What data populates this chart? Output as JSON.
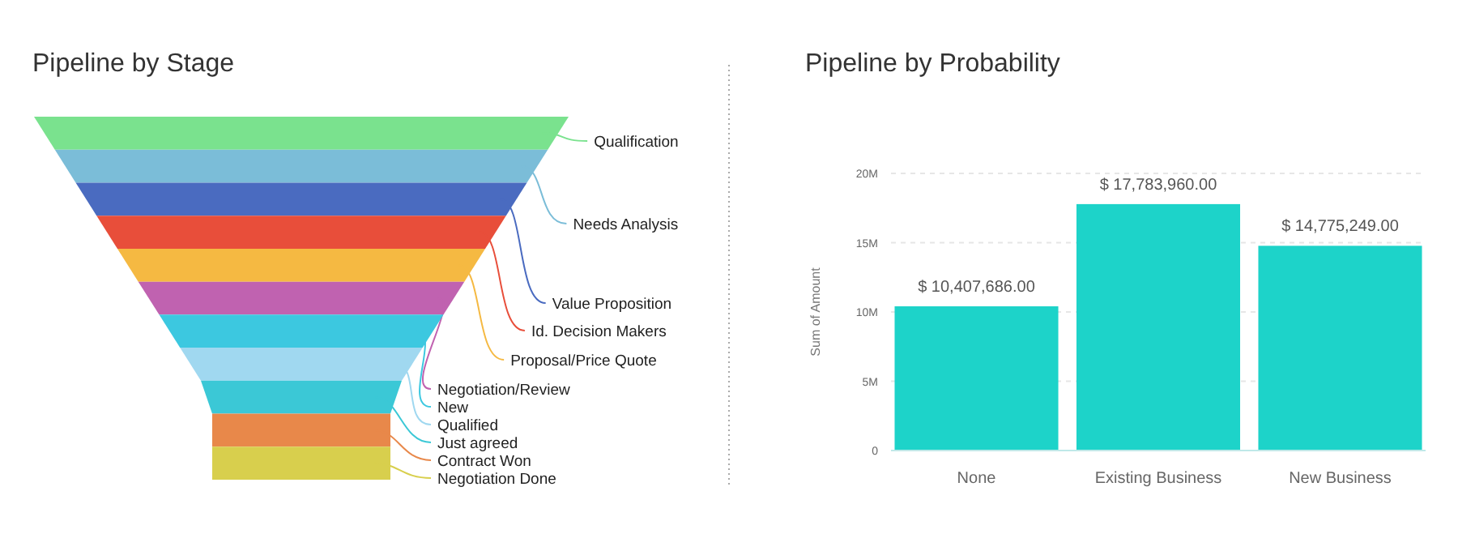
{
  "chart_data": [
    {
      "type": "other",
      "title": "Pipeline by Stage",
      "categories": [
        "Qualification",
        "Needs Analysis",
        "Value Proposition",
        "Id. Decision Makers",
        "Proposal/Price Quote",
        "Negotiation/Review",
        "New",
        "Qualified",
        "Just agreed",
        "Contract Won",
        "Negotiation Done"
      ],
      "colors": [
        "#7ae28e",
        "#7bbdd8",
        "#4a6bc0",
        "#e84e3a",
        "#f5b942",
        "#c062b0",
        "#3cc8e0",
        "#a0d8f0",
        "#3bc8d6",
        "#e8884a",
        "#d8cf4d"
      ]
    },
    {
      "type": "bar",
      "title": "Pipeline by Probability",
      "ylabel": "Sum of Amount",
      "categories": [
        "None",
        "Existing Business",
        "New Business"
      ],
      "values": [
        10407686,
        17783960,
        14775249
      ],
      "color": "#1dd3c9",
      "value_labels": [
        "$ 10,407,686.00",
        "$ 17,783,960.00",
        "$ 14,775,249.00"
      ],
      "ylim": [
        0,
        20000000
      ],
      "yticks": [
        {
          "value": 0,
          "label": "0"
        },
        {
          "value": 5000000,
          "label": "5M"
        },
        {
          "value": 10000000,
          "label": "10M"
        },
        {
          "value": 15000000,
          "label": "15M"
        },
        {
          "value": 20000000,
          "label": "20M"
        }
      ],
      "grid": "y"
    }
  ]
}
